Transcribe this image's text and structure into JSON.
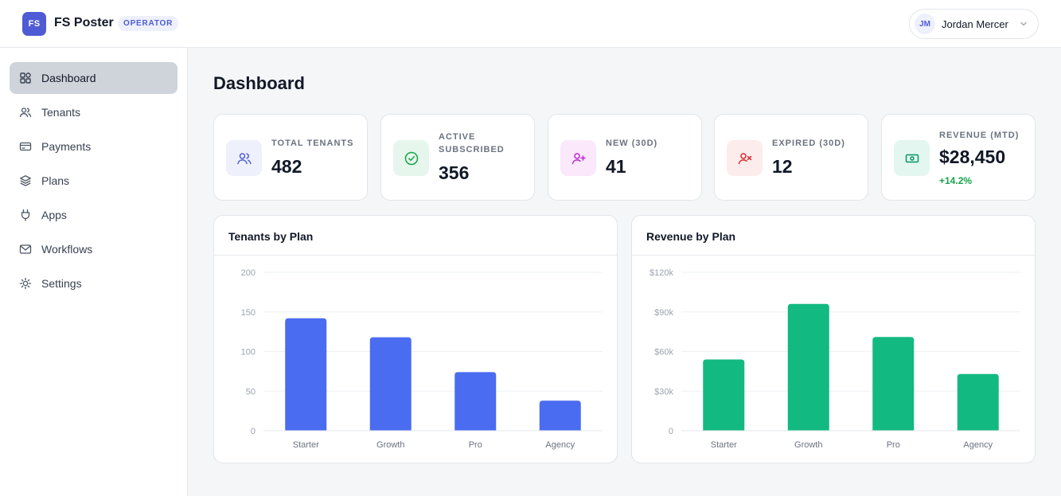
{
  "header": {
    "logo_text": "FS",
    "app_name": "FS Poster",
    "role_badge": "OPERATOR",
    "user": {
      "initials": "JM",
      "name": "Jordan Mercer"
    }
  },
  "sidebar": {
    "items": [
      {
        "label": "Dashboard",
        "icon": "grid-icon",
        "active": true
      },
      {
        "label": "Tenants",
        "icon": "users-icon"
      },
      {
        "label": "Payments",
        "icon": "credit-card-icon"
      },
      {
        "label": "Plans",
        "icon": "layers-icon"
      },
      {
        "label": "Apps",
        "icon": "plug-icon"
      },
      {
        "label": "Workflows",
        "icon": "mail-icon"
      },
      {
        "label": "Settings",
        "icon": "sun-gear-icon"
      }
    ]
  },
  "page": {
    "title": "Dashboard"
  },
  "stats": [
    {
      "label": "TOTAL TENANTS",
      "value": "482",
      "icon": "users-icon",
      "color": "#4f5bd5",
      "bg": "#eef0fb"
    },
    {
      "label": "ACTIVE SUBSCRIBED",
      "value": "356",
      "icon": "check-circle-icon",
      "color": "#16a34a",
      "bg": "#e6f6ec"
    },
    {
      "label": "NEW (30D)",
      "value": "41",
      "icon": "user-plus-icon",
      "color": "#c026d3",
      "bg": "#fbe8fb"
    },
    {
      "label": "EXPIRED (30D)",
      "value": "12",
      "icon": "user-x-icon",
      "color": "#dc2626",
      "bg": "#fdecec"
    },
    {
      "label": "REVENUE (MTD)",
      "value": "$28,450",
      "delta": "+14.2%",
      "icon": "banknote-icon",
      "color": "#059669",
      "bg": "#e3f6ef"
    }
  ],
  "chart_data": [
    {
      "type": "bar",
      "title": "Tenants by Plan",
      "categories": [
        "Starter",
        "Growth",
        "Pro",
        "Agency"
      ],
      "values": [
        142,
        118,
        74,
        38
      ],
      "ylim": [
        0,
        200
      ],
      "yticks": [
        0,
        50,
        100,
        150,
        200
      ],
      "ytick_labels": [
        "0",
        "50",
        "100",
        "150",
        "200"
      ],
      "color": "#4a6cf0",
      "grid": true
    },
    {
      "type": "bar",
      "title": "Revenue by Plan",
      "categories": [
        "Starter",
        "Growth",
        "Pro",
        "Agency"
      ],
      "values": [
        54000,
        96000,
        71000,
        43000
      ],
      "ylim": [
        0,
        120000
      ],
      "yticks": [
        0,
        30000,
        60000,
        90000,
        120000
      ],
      "ytick_labels": [
        "0",
        "$30k",
        "$60k",
        "$90k",
        "$120k"
      ],
      "color": "#12b981",
      "grid": true
    }
  ]
}
